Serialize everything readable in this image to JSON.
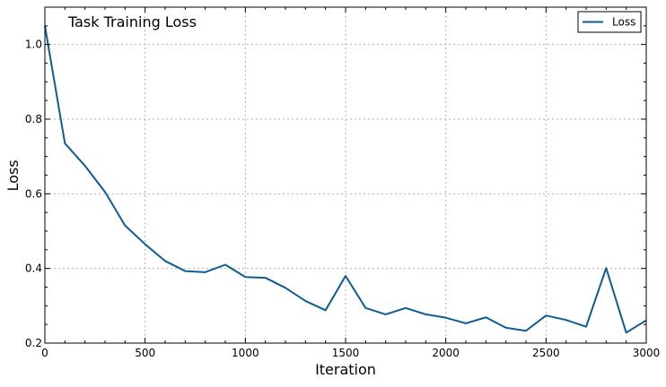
{
  "chart_data": {
    "type": "line",
    "title": "Task Training Loss",
    "xlabel": "Iteration",
    "ylabel": "Loss",
    "xlim": [
      0,
      3000
    ],
    "ylim": [
      0.2,
      1.1
    ],
    "x_ticks": [
      0,
      500,
      1000,
      1500,
      2000,
      2500,
      3000
    ],
    "y_ticks": [
      0.2,
      0.4,
      0.6,
      0.8,
      1.0
    ],
    "x_tick_labels": [
      "0",
      "500",
      "1000",
      "1500",
      "2000",
      "2500",
      "3000"
    ],
    "y_tick_labels": [
      "0.2",
      "0.4",
      "0.6",
      "0.8",
      "1.0"
    ],
    "grid": true,
    "legend_position": "top-right",
    "series": [
      {
        "name": "Loss",
        "color": "#0d5c96",
        "x": [
          0,
          100,
          200,
          300,
          400,
          500,
          600,
          700,
          800,
          900,
          1000,
          1100,
          1200,
          1300,
          1400,
          1500,
          1600,
          1700,
          1800,
          1900,
          2000,
          2100,
          2200,
          2300,
          2400,
          2500,
          2600,
          2700,
          2800,
          2900,
          3000
        ],
        "values": [
          1.05,
          0.735,
          0.675,
          0.605,
          0.515,
          0.465,
          0.42,
          0.393,
          0.39,
          0.41,
          0.377,
          0.375,
          0.348,
          0.313,
          0.288,
          0.38,
          0.294,
          0.277,
          0.294,
          0.277,
          0.268,
          0.253,
          0.269,
          0.241,
          0.233,
          0.274,
          0.262,
          0.244,
          0.401,
          0.228,
          0.261
        ]
      }
    ]
  }
}
